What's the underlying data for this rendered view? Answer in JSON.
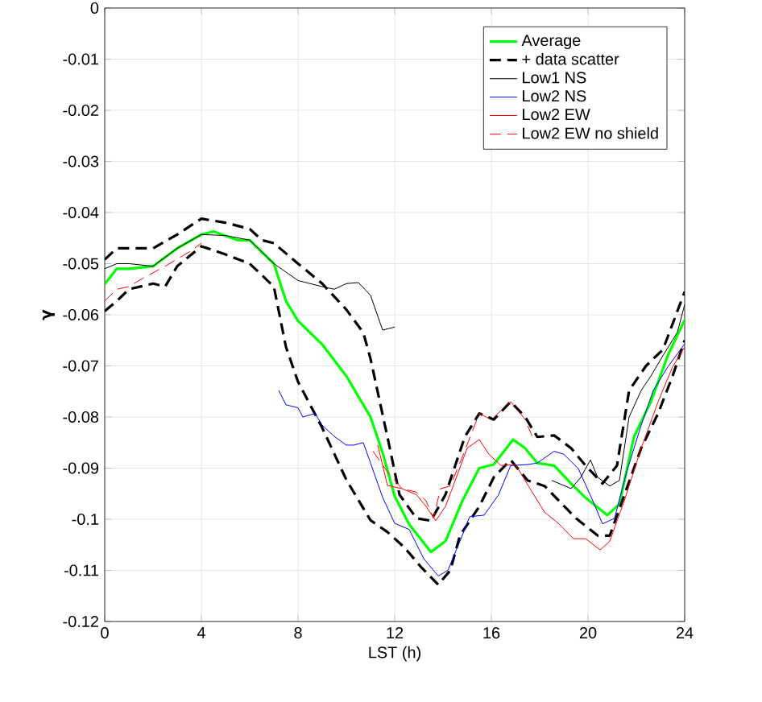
{
  "chart_data": {
    "type": "line",
    "xlabel": "LST (h)",
    "ylabel": "γ",
    "xlim": [
      0,
      24
    ],
    "ylim": [
      -0.12,
      0
    ],
    "xticks": [
      0,
      4,
      8,
      12,
      16,
      20,
      24
    ],
    "yticks": [
      -0.12,
      -0.11,
      -0.1,
      -0.09,
      -0.08,
      -0.07,
      -0.06,
      -0.05,
      -0.04,
      -0.03,
      -0.02,
      -0.01,
      0
    ],
    "grid": true,
    "legend": "top right",
    "line_style": "solid",
    "series": [
      {
        "name": "Average",
        "color": "#00ff00",
        "x": [
          0,
          0.5,
          1,
          2,
          3,
          4,
          4.5,
          5.5,
          6,
          7,
          7.5,
          8,
          9,
          10,
          10.5,
          11,
          11.5,
          12,
          12.6,
          13.5,
          14.1,
          14.8,
          15.5,
          16.1,
          16.9,
          17.4,
          17.9,
          18.6,
          19.3,
          19.9,
          20.8,
          21.3,
          21.9,
          22.6,
          23.3,
          24
        ],
        "values": [
          -0.054,
          -0.051,
          -0.051,
          -0.0505,
          -0.047,
          -0.0443,
          -0.0437,
          -0.0454,
          -0.0454,
          -0.05,
          -0.0573,
          -0.0612,
          -0.0658,
          -0.072,
          -0.076,
          -0.08,
          -0.087,
          -0.0955,
          -0.101,
          -0.1064,
          -0.1043,
          -0.0964,
          -0.09,
          -0.0893,
          -0.0844,
          -0.0861,
          -0.089,
          -0.0895,
          -0.093,
          -0.0958,
          -0.0992,
          -0.097,
          -0.0839,
          -0.077,
          -0.068,
          -0.061
        ]
      },
      {
        "name": "+ data scatter",
        "color": "#000000",
        "line_style": "dashed",
        "x": [
          0,
          0.5,
          1,
          2,
          3,
          4,
          5,
          6,
          6.5,
          7,
          8,
          9,
          10,
          10.7,
          11,
          11.7,
          12.2,
          12.9,
          13.5,
          14.1,
          14.9,
          15.5,
          16.1,
          16.8,
          17.4,
          17.9,
          18.6,
          19.3,
          19.9,
          20.6,
          21.2,
          21.7,
          22.4,
          23.1,
          24
        ],
        "values": [
          -0.0492,
          -0.047,
          -0.047,
          -0.047,
          -0.0443,
          -0.0412,
          -0.042,
          -0.0432,
          -0.0454,
          -0.046,
          -0.05,
          -0.0539,
          -0.059,
          -0.0635,
          -0.0686,
          -0.0839,
          -0.0952,
          -0.0998,
          -0.1003,
          -0.0952,
          -0.0839,
          -0.0793,
          -0.0805,
          -0.077,
          -0.08,
          -0.0839,
          -0.0836,
          -0.0861,
          -0.0895,
          -0.093,
          -0.0895,
          -0.0748,
          -0.07,
          -0.0668,
          -0.0555
        ]
      },
      {
        "color": "#000000",
        "line_style": "dashed",
        "x": [
          0,
          0.5,
          1,
          2,
          2.5,
          3,
          4,
          5,
          6,
          7,
          7.5,
          8,
          9,
          10,
          11,
          11.7,
          12.4,
          13.1,
          13.8,
          14.3,
          14.7,
          15.5,
          16.1,
          16.8,
          17.5,
          18.2,
          18.8,
          19.5,
          20.4,
          20.9,
          21.6,
          22.2,
          22.9,
          23.5,
          24
        ],
        "values": [
          -0.0593,
          -0.0573,
          -0.055,
          -0.0539,
          -0.0545,
          -0.0505,
          -0.0466,
          -0.0482,
          -0.05,
          -0.0545,
          -0.0663,
          -0.0731,
          -0.0821,
          -0.0923,
          -0.1002,
          -0.1025,
          -0.1055,
          -0.1094,
          -0.1128,
          -0.11,
          -0.1032,
          -0.0975,
          -0.0918,
          -0.0884,
          -0.0924,
          -0.0935,
          -0.0964,
          -0.0998,
          -0.1032,
          -0.1032,
          -0.094,
          -0.0861,
          -0.0793,
          -0.072,
          -0.065
        ]
      },
      {
        "name": "Low1 NS",
        "color": "#000000",
        "x": [
          0,
          0.5,
          1,
          2,
          3,
          4,
          5,
          6,
          7,
          8,
          9,
          9.5,
          10,
          10.5,
          11,
          11.5,
          12,
          15,
          18.5,
          19.3,
          19.7,
          20.1,
          20.4,
          20.9,
          21.3,
          21.7,
          22.2,
          22.6,
          23.1,
          23.7,
          24
        ],
        "values": [
          -0.051,
          -0.05,
          -0.05,
          -0.0505,
          -0.047,
          -0.0443,
          -0.0445,
          -0.0454,
          -0.05,
          -0.0533,
          -0.0545,
          -0.055,
          -0.0539,
          -0.0537,
          -0.0562,
          -0.063,
          -0.0624,
          null,
          -0.0924,
          -0.094,
          -0.0918,
          -0.0884,
          -0.0918,
          -0.0935,
          -0.0924,
          -0.08,
          -0.0748,
          -0.072,
          -0.068,
          -0.0634,
          -0.058
        ]
      },
      {
        "name": "Low2 NS",
        "color": "#0000ff",
        "x": [
          7.2,
          7.5,
          8,
          8.2,
          8.7,
          9,
          9.5,
          10,
          10.3,
          10.7,
          11,
          11.5,
          12,
          12.6,
          13.2,
          13.8,
          14.2,
          14.7,
          15.1,
          15.7,
          16.3,
          16.8,
          17.5,
          17.9,
          18.6,
          19,
          19.6,
          20.2,
          20.6,
          21.1,
          21.6,
          22.2,
          22.7,
          23.3,
          24
        ],
        "values": [
          -0.0748,
          -0.0776,
          -0.0782,
          -0.08,
          -0.0793,
          -0.0816,
          -0.0838,
          -0.0855,
          -0.0855,
          -0.085,
          -0.089,
          -0.0957,
          -0.1008,
          -0.102,
          -0.1077,
          -0.1111,
          -0.11,
          -0.1043,
          -0.0995,
          -0.0992,
          -0.0952,
          -0.0895,
          -0.0893,
          -0.089,
          -0.0867,
          -0.0873,
          -0.0901,
          -0.0964,
          -0.1009,
          -0.0998,
          -0.0907,
          -0.0816,
          -0.0748,
          -0.0702,
          -0.0657
        ]
      },
      {
        "name": "Low2 EW",
        "color": "#ff0000",
        "x": [
          11.3,
          11.7,
          12.3,
          12.9,
          13.3,
          13.7,
          14.1,
          14.6,
          15,
          15.5,
          15.9,
          16.4,
          17,
          17.6,
          18.2,
          18.8,
          19.4,
          19.9,
          20.5,
          20.9,
          21.5,
          22.2,
          22.9,
          23.5,
          24
        ],
        "values": [
          -0.0855,
          -0.0934,
          -0.094,
          -0.0952,
          -0.0975,
          -0.1003,
          -0.0975,
          -0.0912,
          -0.0861,
          -0.0844,
          -0.0873,
          -0.0895,
          -0.0893,
          -0.094,
          -0.0986,
          -0.1009,
          -0.1038,
          -0.1038,
          -0.106,
          -0.1043,
          -0.0964,
          -0.0861,
          -0.077,
          -0.0702,
          -0.0663
        ]
      },
      {
        "name": "Low2 EW no shield",
        "color": "#ff0000",
        "line_style": "dashed",
        "x": [
          0,
          0.5,
          1,
          1.6,
          2.5,
          3.5,
          4,
          8,
          11.1,
          11.7,
          12.3,
          12.9,
          13.3,
          13.6,
          13.9,
          14.3,
          14.8,
          15.5,
          16,
          16.8,
          17.4,
          17.7
        ],
        "values": [
          -0.0573,
          -0.055,
          -0.0545,
          -0.0528,
          -0.0505,
          -0.0477,
          -0.046,
          null,
          -0.0867,
          -0.0907,
          -0.094,
          -0.0947,
          -0.0964,
          -0.0998,
          -0.094,
          -0.0935,
          -0.0878,
          -0.0793,
          -0.0805,
          -0.077,
          -0.0805,
          -0.0839
        ]
      }
    ]
  }
}
